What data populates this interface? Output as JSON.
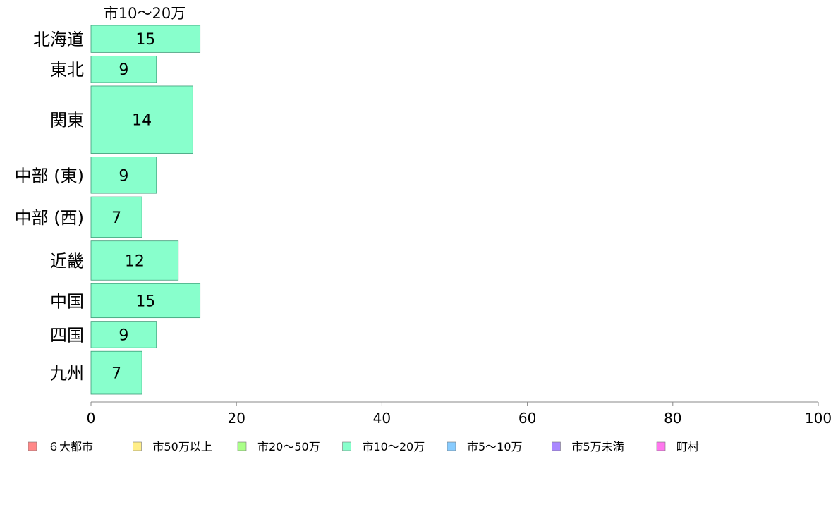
{
  "chart_data": {
    "type": "bar",
    "orientation": "horizontal",
    "title": "市10〜20万",
    "categories": [
      "北海道",
      "東北",
      "関東",
      "中部 (東)",
      "中部 (西)",
      "近畿",
      "中国",
      "四国",
      "九州"
    ],
    "values": [
      15,
      9,
      14,
      9,
      7,
      12,
      15,
      9,
      7
    ],
    "bar_thickness_weights": [
      0.96,
      0.94,
      2.39,
      1.29,
      1.44,
      1.39,
      1.21,
      0.94,
      1.52
    ],
    "xlim": [
      0,
      100
    ],
    "xticks": [
      0,
      20,
      40,
      60,
      80,
      100
    ],
    "xlabel": "",
    "ylabel": "",
    "grid": false,
    "legend_position": "bottom",
    "series_color": "#88ffcc",
    "legend": [
      {
        "label": "６大都市",
        "color": "#ff8888"
      },
      {
        "label": "市50万以上",
        "color": "#ffee88"
      },
      {
        "label": "市20〜50万",
        "color": "#aaff88"
      },
      {
        "label": "市10〜20万",
        "color": "#88ffcc"
      },
      {
        "label": "市5〜10万",
        "color": "#88ccff"
      },
      {
        "label": "市5万未満",
        "color": "#aa88ff"
      },
      {
        "label": "町村",
        "color": "#ff77ee"
      }
    ]
  }
}
